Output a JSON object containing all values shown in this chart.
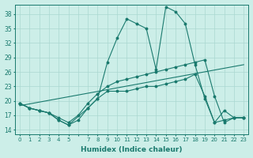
{
  "xlabel": "Humidex (Indice chaleur)",
  "background_color": "#cceee8",
  "grid_color": "#aad8d0",
  "line_color": "#1a7a6e",
  "xlim": [
    -0.5,
    23.5
  ],
  "ylim": [
    13,
    40
  ],
  "yticks": [
    14,
    17,
    20,
    23,
    26,
    29,
    32,
    35,
    38
  ],
  "xticks": [
    0,
    1,
    2,
    3,
    4,
    5,
    6,
    7,
    8,
    9,
    10,
    11,
    12,
    13,
    14,
    15,
    16,
    17,
    18,
    19,
    20,
    21,
    22,
    23
  ],
  "xtick_labels": [
    "0",
    "1",
    "2",
    "3",
    "4",
    "5",
    "",
    "7",
    "8",
    "9",
    "10",
    "11",
    "12",
    "13",
    "14",
    "15",
    "16",
    "17",
    "18",
    "19",
    "20",
    "21",
    "22",
    "23"
  ],
  "line1_x": [
    0,
    1,
    2,
    3,
    4,
    5,
    6,
    7,
    8,
    9,
    10,
    11,
    12,
    13,
    14,
    15,
    16,
    17,
    18,
    19,
    20,
    21,
    22,
    23
  ],
  "line1_y": [
    19.5,
    18.5,
    18.0,
    17.5,
    16.0,
    15.0,
    16.0,
    18.5,
    20.5,
    28.0,
    33.0,
    37.0,
    36.0,
    35.0,
    26.5,
    39.5,
    38.5,
    36.0,
    27.5,
    20.5,
    15.5,
    18.0,
    16.5,
    16.5
  ],
  "line2_x": [
    0,
    1,
    2,
    3,
    4,
    5,
    7,
    8,
    9,
    10,
    11,
    12,
    13,
    14,
    15,
    16,
    17,
    18,
    19,
    20,
    21,
    22,
    23
  ],
  "line2_y": [
    19.5,
    18.5,
    18.0,
    17.5,
    16.0,
    15.0,
    18.5,
    20.5,
    22.0,
    22.0,
    22.0,
    22.5,
    23.0,
    23.0,
    23.5,
    24.0,
    24.5,
    25.5,
    21.0,
    15.5,
    16.0,
    16.5,
    16.5
  ],
  "line3_x": [
    0,
    1,
    2,
    3,
    4,
    5,
    6,
    7,
    8,
    9,
    10,
    11,
    12,
    13,
    14,
    15,
    16,
    17,
    18,
    19,
    20,
    21,
    22,
    23
  ],
  "line3_y": [
    19.5,
    18.5,
    18.0,
    17.5,
    16.5,
    15.5,
    17.0,
    19.5,
    21.5,
    23.0,
    24.0,
    24.5,
    25.0,
    25.5,
    26.0,
    26.5,
    27.0,
    27.5,
    28.0,
    28.5,
    21.0,
    15.5,
    16.5,
    16.5
  ],
  "line4_x": [
    0,
    23
  ],
  "line4_y": [
    19.0,
    27.5
  ]
}
